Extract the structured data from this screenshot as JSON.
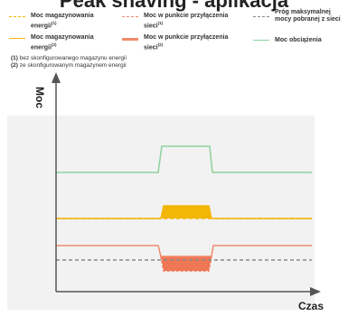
{
  "title": "Peak shaving - aplikacja",
  "legend": [
    {
      "label": "Moc magazynowania energii",
      "sup": "(1)",
      "color": "#f2b705",
      "style": "dashed"
    },
    {
      "label": "Moc magazynowania energii",
      "sup": "(2)",
      "color": "#f2b705",
      "style": "solid"
    },
    {
      "label": "Moc w punkcie przyłączenia sieci",
      "sup": "(1)",
      "color": "#ef8a6b",
      "style": "dashed"
    },
    {
      "label": "Moc w punkcie przyłączenia sieci",
      "sup": "(2)",
      "color": "#ef8a6b",
      "style": "solid"
    },
    {
      "label": "Próg maksymalnej mocy pobranej z sieci",
      "sup": "",
      "color": "#8a8a8a",
      "style": "dashed"
    },
    {
      "label": "Moc obciążenia",
      "sup": "",
      "color": "#8fd19e",
      "style": "solid"
    }
  ],
  "notes": [
    {
      "num": "(1)",
      "text": "bez skonfigurowanego magazynu energii"
    },
    {
      "num": "(2)",
      "text": "ze skonfigurowanym magazynem energii"
    }
  ],
  "axes": {
    "y": "Moc",
    "x": "Czas"
  },
  "colors": {
    "background_panel": "#f2f2f2",
    "axis": "#555555"
  }
}
